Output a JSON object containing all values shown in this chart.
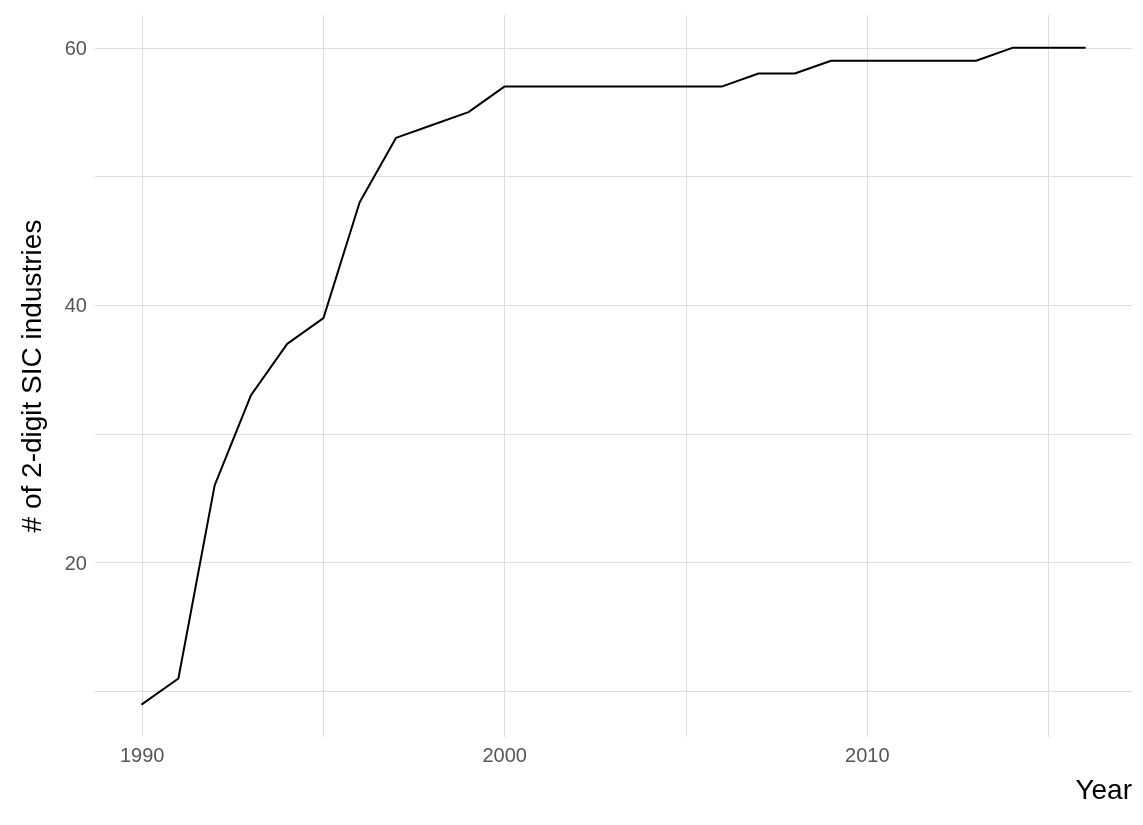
{
  "chart_data": {
    "type": "line",
    "xlabel": "Year",
    "ylabel": "# of 2-digit SIC industries",
    "x": [
      1990,
      1991,
      1992,
      1993,
      1994,
      1995,
      1996,
      1997,
      1998,
      1999,
      2000,
      2001,
      2002,
      2003,
      2004,
      2005,
      2006,
      2007,
      2008,
      2009,
      2010,
      2011,
      2012,
      2013,
      2014,
      2015,
      2016
    ],
    "series": [
      {
        "color": "#000000",
        "values": [
          9,
          11,
          26,
          33,
          37,
          39,
          48,
          53,
          54,
          55,
          57,
          57,
          57,
          57,
          57,
          57,
          57,
          58,
          58,
          59,
          59,
          59,
          59,
          59,
          60,
          60,
          60
        ]
      }
    ],
    "xlim": [
      1988.7,
      2017.3
    ],
    "ylim": [
      6.45,
      62.55
    ],
    "xticks": [
      1990,
      {
        "value": 1995,
        "label": null
      },
      2000,
      {
        "value": 2005,
        "label": null
      },
      2010,
      {
        "value": 2015,
        "label": null
      }
    ],
    "yticks": [
      {
        "value": 10,
        "label": null
      },
      20,
      {
        "value": 30,
        "label": null
      },
      40,
      {
        "value": 50,
        "label": null
      },
      60
    ],
    "grid": true,
    "marker": "none",
    "line_style": "solid"
  }
}
